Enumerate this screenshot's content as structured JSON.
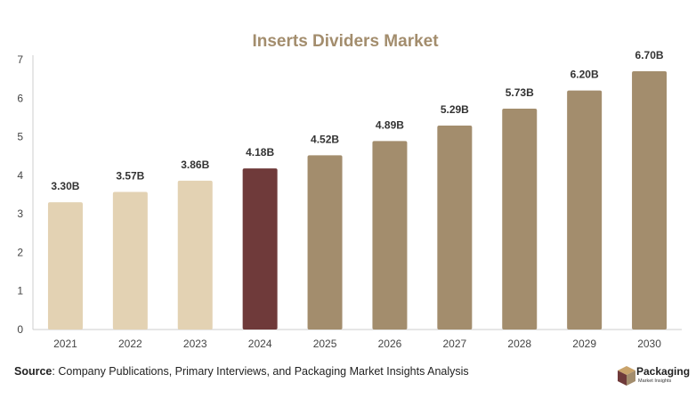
{
  "chart_data": {
    "type": "bar",
    "title": "Inserts Dividers Market",
    "categories": [
      "2021",
      "2022",
      "2023",
      "2024",
      "2025",
      "2026",
      "2027",
      "2028",
      "2029",
      "2030"
    ],
    "values": [
      3.3,
      3.57,
      3.86,
      4.18,
      4.52,
      4.89,
      5.29,
      5.73,
      6.2,
      6.7
    ],
    "data_labels": [
      "3.30B",
      "3.57B",
      "3.86B",
      "4.18B",
      "4.52B",
      "4.89B",
      "5.29B",
      "5.73B",
      "6.20B",
      "6.70B"
    ],
    "yticks": [
      "0",
      "1",
      "2",
      "3",
      "4",
      "5",
      "6",
      "7"
    ],
    "ylim": [
      0,
      7
    ],
    "xlabel": "",
    "ylabel": "",
    "grid": false,
    "colors": {
      "title": "#a38d6d",
      "historical": "#e3d2b3",
      "base_year": "#6f3a3a",
      "forecast": "#a38d6d",
      "axis": "#cccccc"
    },
    "bar_color_groups": [
      "historical",
      "historical",
      "historical",
      "base_year",
      "forecast",
      "forecast",
      "forecast",
      "forecast",
      "forecast",
      "forecast"
    ]
  },
  "footer": {
    "source_label": "Source",
    "source_text": ": Company Publications, Primary Interviews, and Packaging Market Insights Analysis"
  },
  "logo": {
    "name": "Packaging",
    "subtitle": "Market Insights",
    "icon": "box-icon"
  }
}
